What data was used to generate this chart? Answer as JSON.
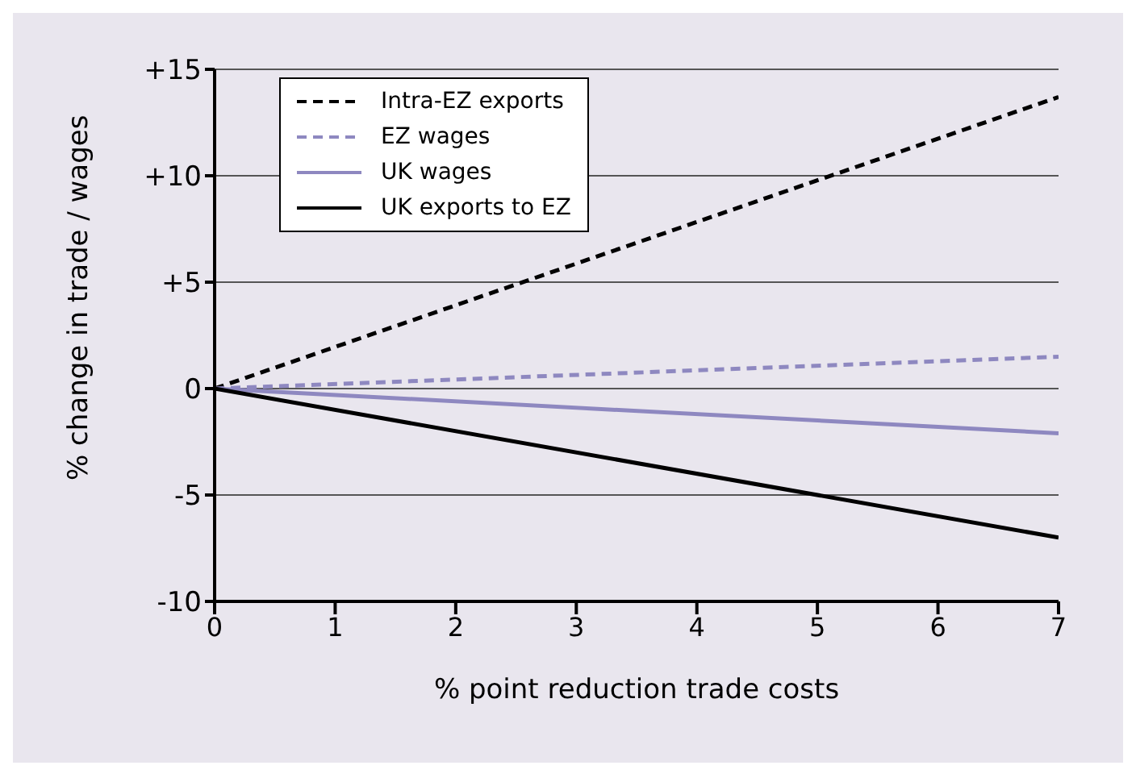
{
  "chart_data": {
    "type": "line",
    "xlabel": "% point reduction trade costs",
    "ylabel": "% change in trade / wages",
    "x": [
      0,
      7
    ],
    "series": [
      {
        "name": "Intra-EZ exports",
        "color": "#000000",
        "line_style": "dashed",
        "values": [
          0,
          13.7
        ]
      },
      {
        "name": "EZ wages",
        "color": "#8e88c0",
        "line_style": "dashed",
        "values": [
          0,
          1.5
        ]
      },
      {
        "name": "UK wages",
        "color": "#8e88c0",
        "line_style": "solid",
        "values": [
          0,
          -2.1
        ]
      },
      {
        "name": "UK exports to EZ",
        "color": "#000000",
        "line_style": "solid",
        "values": [
          0,
          -7.0
        ]
      }
    ],
    "xlim": [
      0,
      7
    ],
    "xticks": [
      0,
      1,
      2,
      3,
      4,
      5,
      6,
      7
    ],
    "ylim": [
      -10,
      15
    ],
    "yticks": [
      {
        "value": -10,
        "label": "-10"
      },
      {
        "value": -5,
        "label": "-5"
      },
      0,
      {
        "value": 5,
        "label": "+5"
      },
      {
        "value": 10,
        "label": "+10"
      },
      {
        "value": 15,
        "label": "+15"
      }
    ],
    "grid": "y",
    "legend": "top left",
    "marker": "none"
  }
}
